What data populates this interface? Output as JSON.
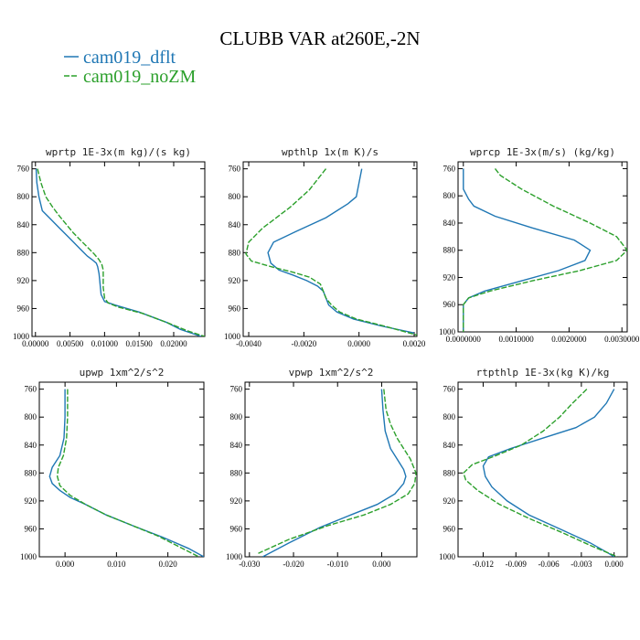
{
  "figure": {
    "title": "CLUBB VAR at260E,-2N",
    "legend": [
      {
        "name": "cam019_dflt",
        "color": "#1f77b4"
      },
      {
        "name": "cam019_noZM",
        "color": "#2ca02c"
      }
    ]
  },
  "chart_data": [
    {
      "type": "line",
      "title": "wprtp  1E-3x(m kg)/(s kg)",
      "xlim": [
        -0.0005,
        0.0245
      ],
      "ylim": [
        750,
        1000
      ],
      "y_inverted": true,
      "xticks": [
        0.0,
        0.005,
        0.01,
        0.015,
        0.02
      ],
      "xtick_labels": [
        "0.00000",
        "0.00500",
        "0.01000",
        "0.01500",
        "0.02000"
      ],
      "yticks": [
        760,
        800,
        840,
        880,
        920,
        960,
        1000
      ],
      "series": [
        {
          "name": "cam019_dflt",
          "x": [
            0.0001,
            0.0002,
            0.0005,
            0.001,
            0.002,
            0.0035,
            0.005,
            0.0065,
            0.0075,
            0.0082,
            0.0088,
            0.009,
            0.0092,
            0.0093,
            0.0094,
            0.0095,
            0.01,
            0.0115,
            0.015,
            0.019,
            0.021,
            0.024
          ],
          "y": [
            760,
            780,
            800,
            820,
            830,
            845,
            860,
            875,
            885,
            890,
            895,
            900,
            910,
            920,
            930,
            940,
            950,
            955,
            965,
            980,
            990,
            1000
          ]
        },
        {
          "name": "cam019_noZM",
          "x": [
            0.0003,
            0.0008,
            0.0015,
            0.0025,
            0.0035,
            0.0045,
            0.0055,
            0.0065,
            0.0075,
            0.0085,
            0.0092,
            0.0096,
            0.0098,
            0.0098,
            0.0098,
            0.01,
            0.0105,
            0.012,
            0.0155,
            0.019,
            0.022,
            0.0245
          ],
          "y": [
            760,
            780,
            800,
            815,
            828,
            840,
            852,
            862,
            872,
            882,
            890,
            897,
            905,
            915,
            930,
            945,
            952,
            958,
            967,
            980,
            992,
            1000
          ]
        }
      ]
    },
    {
      "type": "line",
      "title": "wpthlp  1x(m K)/s",
      "xlim": [
        -0.0042,
        0.0021
      ],
      "ylim": [
        750,
        1000
      ],
      "y_inverted": true,
      "xticks": [
        -0.004,
        -0.002,
        0.0,
        0.002
      ],
      "xtick_labels": [
        "-0.0040",
        "-0.0020",
        "0.0000",
        "0.0020"
      ],
      "yticks": [
        760,
        800,
        840,
        880,
        920,
        960,
        1000
      ],
      "series": [
        {
          "name": "cam019_dflt",
          "x": [
            0.0001,
            0.0,
            -0.0001,
            -0.0004,
            -0.0012,
            -0.0023,
            -0.0031,
            -0.0033,
            -0.0032,
            -0.0029,
            -0.0024,
            -0.0019,
            -0.0015,
            -0.0013,
            -0.0012,
            -0.0011,
            -0.0008,
            -0.0002,
            0.0008,
            0.002
          ],
          "y": [
            760,
            780,
            800,
            810,
            830,
            850,
            865,
            880,
            895,
            905,
            912,
            920,
            928,
            935,
            945,
            955,
            965,
            975,
            985,
            995
          ]
        },
        {
          "name": "cam019_noZM",
          "x": [
            -0.0012,
            -0.0015,
            -0.0018,
            -0.0025,
            -0.0035,
            -0.004,
            -0.0041,
            -0.0039,
            -0.0032,
            -0.0024,
            -0.0018,
            -0.0014,
            -0.0013,
            -0.0012,
            -0.001,
            -0.0007,
            -0.0001,
            0.0009,
            0.0021
          ],
          "y": [
            760,
            775,
            790,
            815,
            845,
            865,
            882,
            892,
            900,
            908,
            915,
            925,
            935,
            945,
            955,
            965,
            975,
            985,
            998
          ]
        }
      ]
    },
    {
      "type": "line",
      "title": "wprcp  1E-3x(m/s) (kg/kg)",
      "xlim": [
        -0.0001,
        0.0031
      ],
      "ylim": [
        750,
        1000
      ],
      "y_inverted": true,
      "xticks": [
        0.0,
        0.001,
        0.002,
        0.003
      ],
      "xtick_labels": [
        "0.0000000",
        "0.0010000",
        "0.0020000",
        "0.0030000"
      ],
      "yticks": [
        760,
        800,
        840,
        880,
        920,
        960,
        1000
      ],
      "series": [
        {
          "name": "cam019_dflt",
          "x": [
            0.0,
            0.0,
            0.0001,
            0.0002,
            0.0006,
            0.0013,
            0.0021,
            0.0024,
            0.0023,
            0.0018,
            0.0011,
            0.0004,
            0.0001,
            0.0,
            0.0
          ],
          "y": [
            760,
            790,
            805,
            815,
            830,
            847,
            865,
            880,
            895,
            910,
            925,
            940,
            950,
            960,
            1000
          ]
        },
        {
          "name": "cam019_noZM",
          "x": [
            0.0006,
            0.0007,
            0.0011,
            0.0017,
            0.0024,
            0.0029,
            0.0031,
            0.0029,
            0.0022,
            0.0013,
            0.0005,
            0.0001,
            0.0,
            0.0
          ],
          "y": [
            760,
            770,
            790,
            815,
            840,
            860,
            880,
            895,
            910,
            925,
            940,
            950,
            960,
            1000
          ]
        }
      ]
    },
    {
      "type": "line",
      "title": "upwp  1xm^2/s^2",
      "xlim": [
        -0.005,
        0.027
      ],
      "ylim": [
        750,
        1000
      ],
      "y_inverted": true,
      "xticks": [
        0.0,
        0.01,
        0.02
      ],
      "xtick_labels": [
        "0.000",
        "0.010",
        "0.020"
      ],
      "yticks": [
        760,
        800,
        840,
        880,
        920,
        960,
        1000
      ],
      "series": [
        {
          "name": "cam019_dflt",
          "x": [
            0.0,
            0.0,
            -0.0002,
            -0.001,
            -0.0025,
            -0.003,
            -0.0025,
            -0.001,
            0.001,
            0.004,
            0.008,
            0.013,
            0.019,
            0.024,
            0.027
          ],
          "y": [
            760,
            800,
            830,
            855,
            872,
            885,
            895,
            905,
            915,
            925,
            940,
            955,
            972,
            988,
            1000
          ]
        },
        {
          "name": "cam019_noZM",
          "x": [
            0.0005,
            0.0005,
            0.0003,
            -0.0003,
            -0.0013,
            -0.0015,
            -0.001,
            0.001,
            0.004,
            0.008,
            0.013,
            0.018,
            0.022,
            0.026
          ],
          "y": [
            760,
            800,
            830,
            855,
            872,
            885,
            898,
            912,
            925,
            940,
            955,
            970,
            985,
            1000
          ]
        }
      ]
    },
    {
      "type": "line",
      "title": "vpwp  1xm^2/s^2",
      "xlim": [
        -0.031,
        0.008
      ],
      "ylim": [
        750,
        1000
      ],
      "y_inverted": true,
      "xticks": [
        -0.03,
        -0.02,
        -0.01,
        0.0
      ],
      "xtick_labels": [
        "-0.030",
        "-0.020",
        "-0.010",
        "0.000"
      ],
      "yticks": [
        760,
        800,
        840,
        880,
        920,
        960,
        1000
      ],
      "series": [
        {
          "name": "cam019_dflt",
          "x": [
            0.0,
            0.0003,
            0.0008,
            0.002,
            0.0035,
            0.005,
            0.0055,
            0.005,
            0.003,
            -0.001,
            -0.007,
            -0.014,
            -0.021,
            -0.027
          ],
          "y": [
            760,
            790,
            820,
            845,
            860,
            875,
            885,
            895,
            910,
            925,
            940,
            958,
            980,
            1000
          ]
        },
        {
          "name": "cam019_noZM",
          "x": [
            0.0005,
            0.001,
            0.002,
            0.0035,
            0.005,
            0.0065,
            0.0078,
            0.0075,
            0.006,
            0.002,
            -0.004,
            -0.012,
            -0.021,
            -0.028
          ],
          "y": [
            760,
            790,
            810,
            830,
            845,
            860,
            880,
            895,
            910,
            925,
            940,
            955,
            975,
            995
          ]
        }
      ]
    },
    {
      "type": "line",
      "title": "rtpthlp  1E-3x(kg K)/kg",
      "xlim": [
        -0.0143,
        0.0012
      ],
      "ylim": [
        750,
        1000
      ],
      "y_inverted": true,
      "xticks": [
        -0.012,
        -0.009,
        -0.006,
        -0.003,
        0.0
      ],
      "xtick_labels": [
        "-0.012",
        "-0.009",
        "-0.006",
        "-0.003",
        "0.000"
      ],
      "yticks": [
        760,
        800,
        840,
        880,
        920,
        960,
        1000
      ],
      "series": [
        {
          "name": "cam019_dflt",
          "x": [
            0.0,
            -0.0007,
            -0.0018,
            -0.0035,
            -0.0065,
            -0.0095,
            -0.0115,
            -0.012,
            -0.0118,
            -0.0112,
            -0.0098,
            -0.0078,
            -0.005,
            -0.0022,
            -0.0005,
            0.0
          ],
          "y": [
            760,
            780,
            800,
            815,
            830,
            845,
            857,
            870,
            885,
            900,
            920,
            940,
            960,
            980,
            995,
            1000
          ]
        },
        {
          "name": "cam019_noZM",
          "x": [
            -0.0025,
            -0.0038,
            -0.005,
            -0.0065,
            -0.0085,
            -0.0108,
            -0.013,
            -0.0138,
            -0.0136,
            -0.0125,
            -0.0105,
            -0.0078,
            -0.0048,
            -0.002,
            0.0003
          ],
          "y": [
            760,
            780,
            800,
            820,
            840,
            855,
            868,
            880,
            890,
            905,
            925,
            945,
            965,
            985,
            1000
          ]
        }
      ]
    }
  ]
}
